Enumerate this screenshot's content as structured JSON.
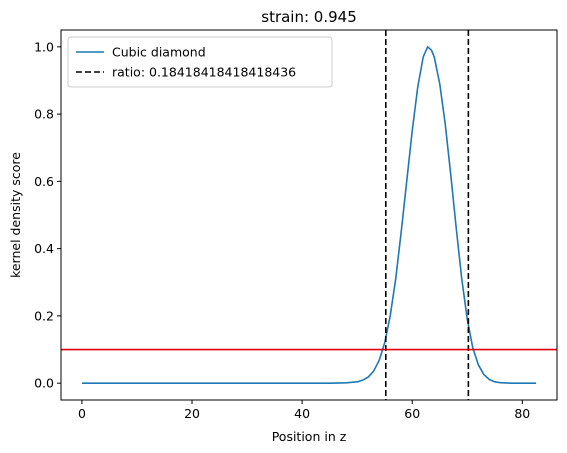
{
  "chart_data": {
    "type": "line",
    "title": "strain: 0.945",
    "xlabel": "Position in z",
    "ylabel": "kernel density score",
    "xlim": [
      -3.8,
      86.3
    ],
    "ylim": [
      -0.05,
      1.05
    ],
    "xticks": [
      0,
      20,
      40,
      60,
      80
    ],
    "yticks": [
      0.0,
      0.2,
      0.4,
      0.6,
      0.8,
      1.0
    ],
    "xtick_labels": [
      "0",
      "20",
      "40",
      "60",
      "80"
    ],
    "ytick_labels": [
      "0.0",
      "0.2",
      "0.4",
      "0.6",
      "0.8",
      "1.0"
    ],
    "grid": false,
    "legend_position": "top-left",
    "series": [
      {
        "name": "Cubic diamond",
        "color": "#1f77b4",
        "x": [
          0,
          10,
          20,
          30,
          40,
          45,
          48,
          50,
          51,
          52,
          53,
          54,
          55,
          56,
          57,
          58,
          59,
          60,
          61,
          62,
          62.8,
          63.5,
          64,
          65,
          66,
          67,
          68,
          69,
          70,
          71,
          72,
          73,
          74,
          75,
          76,
          78,
          80,
          82.5
        ],
        "y": [
          0.0,
          0.0,
          0.0,
          0.0,
          0.0,
          0.0,
          0.001,
          0.004,
          0.009,
          0.018,
          0.036,
          0.068,
          0.12,
          0.2,
          0.31,
          0.45,
          0.6,
          0.75,
          0.88,
          0.97,
          1.0,
          0.99,
          0.97,
          0.89,
          0.77,
          0.62,
          0.46,
          0.31,
          0.19,
          0.105,
          0.055,
          0.026,
          0.011,
          0.004,
          0.0015,
          0.0,
          0.0,
          0.0
        ]
      }
    ],
    "vlines": {
      "name": "ratio: 0.18418418418418436",
      "color": "#000000",
      "style": "dashed",
      "x": [
        55.2,
        70.2
      ]
    },
    "hline": {
      "color": "#e00000",
      "y": 0.1
    }
  }
}
